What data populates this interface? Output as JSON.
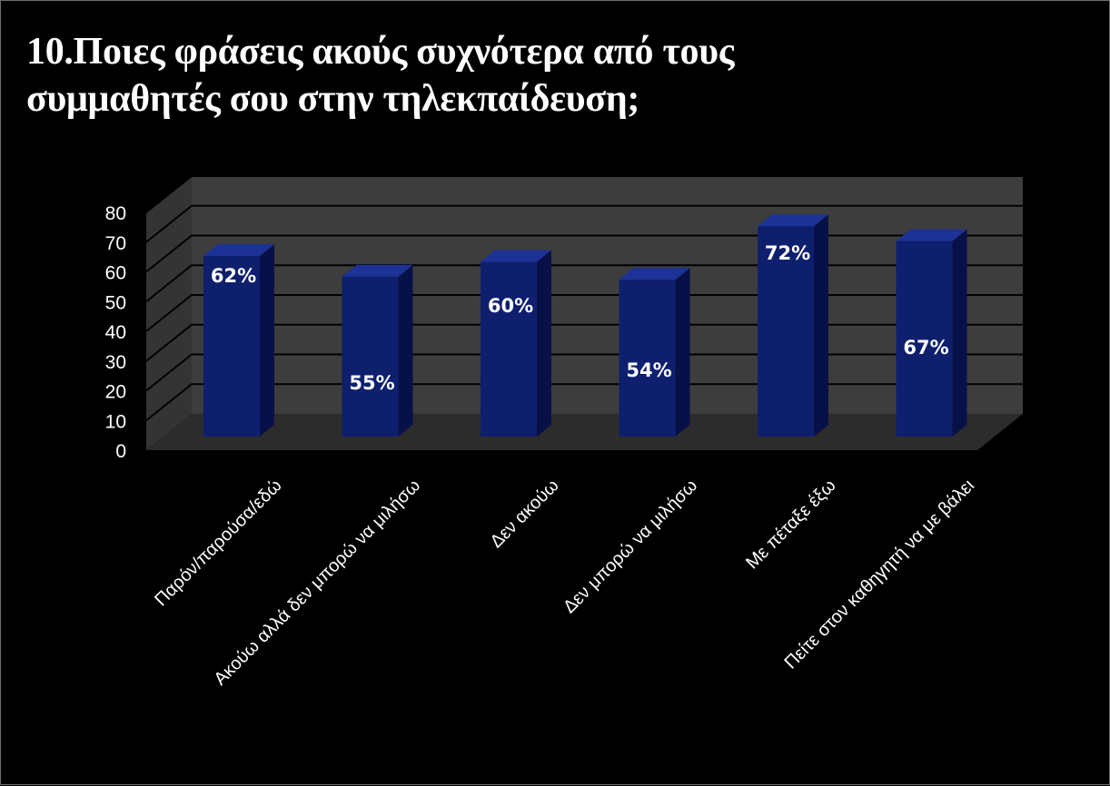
{
  "title_lines": [
    "10.Ποιες φράσεις ακούς συχνότερα από τους",
    "συμμαθητές σου στην τηλεκπαίδευση;"
  ],
  "colors": {
    "background": "#000000",
    "wall": "#3d3d3d",
    "floor": "#2c2c2c",
    "bar_front": "#0e1f6e",
    "bar_side": "#081147",
    "bar_top": "#1d3296",
    "text": "#ffffff"
  },
  "chart_data": {
    "type": "bar",
    "style": "3d-column",
    "categories": [
      "Παρόν/παρούσα/εδώ",
      "Ακούω αλλά δεν μπορώ να μιλήσω",
      "Δεν ακούω",
      "Δεν μπορώ να μιλήσω",
      "Με πέταξε έξω",
      "Πείτε στον καθηγητή να με βάλει"
    ],
    "values": [
      62,
      55,
      60,
      54,
      72,
      67
    ],
    "data_labels": [
      "62%",
      "55%",
      "60%",
      "54%",
      "72%",
      "67%"
    ],
    "ylim": [
      0,
      80
    ],
    "yticks": [
      0,
      10,
      20,
      30,
      40,
      50,
      60,
      70,
      80
    ],
    "grid": true,
    "legend": "none"
  }
}
